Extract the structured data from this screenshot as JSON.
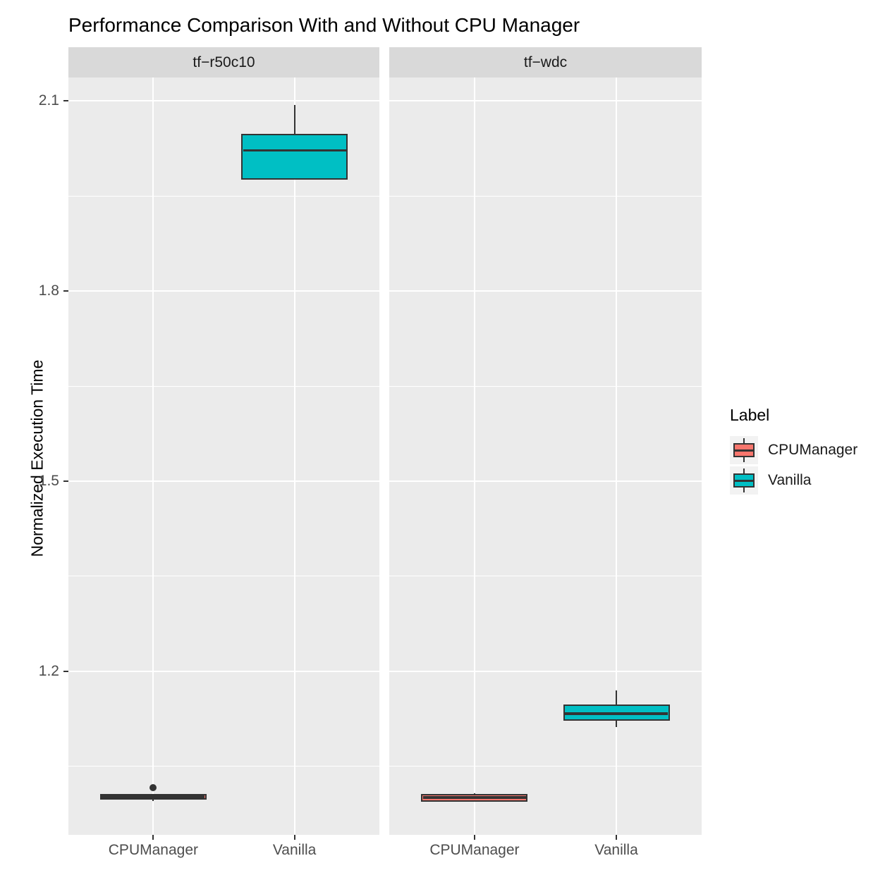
{
  "title": "Performance Comparison With and Without CPU Manager",
  "y_axis": {
    "label": "Normalized Execution Time"
  },
  "legend": {
    "title": "Label",
    "entries": [
      {
        "label": "CPUManager",
        "color": "#F8766D"
      },
      {
        "label": "Vanilla",
        "color": "#00BFC4"
      }
    ]
  },
  "colors": {
    "panel_background": "#EBEBEB",
    "strip_background": "#D9D9D9",
    "gridline": "#FFFFFF",
    "box_outline": "#333333",
    "cpumanager_fill": "#F8766D",
    "vanilla_fill": "#00BFC4",
    "axis_text": "#4D4D4D"
  },
  "chart_data": {
    "type": "boxplot",
    "title": "Performance Comparison With and Without CPU Manager",
    "ylabel": "Normalized Execution Time",
    "xlabel": "",
    "ylim": [
      0.942,
      2.137
    ],
    "yticks": [
      1.2,
      1.5,
      1.8,
      2.1
    ],
    "yticks_minor": [
      1.05,
      1.35,
      1.65,
      1.95
    ],
    "grid": "on",
    "legend_position": "right",
    "facets": [
      {
        "label": "tf−r50c10",
        "categories": [
          "CPUManager",
          "Vanilla"
        ],
        "boxes": [
          {
            "category": "CPUManager",
            "series": "CPUManager",
            "fill": "#F8766D",
            "whisker_low": 0.995,
            "q1": 0.998,
            "median": 1.002,
            "q3": 1.006,
            "whisker_high": 1.007,
            "outliers": [
              1.017
            ]
          },
          {
            "category": "Vanilla",
            "series": "Vanilla",
            "fill": "#00BFC4",
            "whisker_low": 1.976,
            "q1": 1.976,
            "median": 2.022,
            "q3": 2.048,
            "whisker_high": 2.094,
            "outliers": []
          }
        ]
      },
      {
        "label": "tf−wdc",
        "categories": [
          "CPUManager",
          "Vanilla"
        ],
        "boxes": [
          {
            "category": "CPUManager",
            "series": "CPUManager",
            "fill": "#F8766D",
            "whisker_low": 0.994,
            "q1": 0.994,
            "median": 1.001,
            "q3": 1.007,
            "whisker_high": 1.008,
            "outliers": []
          },
          {
            "category": "Vanilla",
            "series": "Vanilla",
            "fill": "#00BFC4",
            "whisker_low": 1.112,
            "q1": 1.122,
            "median": 1.133,
            "q3": 1.148,
            "whisker_high": 1.17,
            "outliers": []
          }
        ]
      }
    ]
  }
}
